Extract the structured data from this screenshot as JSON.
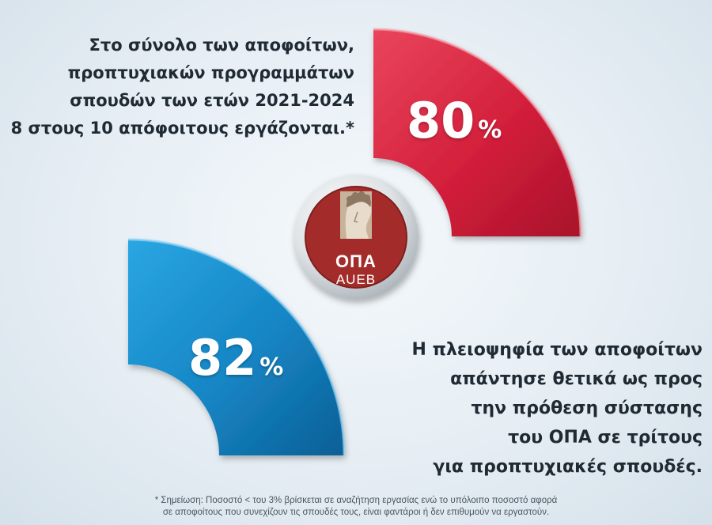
{
  "red_block": {
    "lines": [
      "Στο σύνολο των αποφοίτων,",
      "προπτυχιακών προγραμμάτων",
      "σπουδών των ετών 2021-2024",
      "8 στους 10 απόφοιτους εργάζονται.*"
    ],
    "value": "80",
    "unit": "%",
    "color": "#d7233f"
  },
  "blue_block": {
    "lines": [
      "Η πλειοψηφία των αποφοίτων",
      "απάντησε θετικά ως προς",
      "την πρόθεση σύστασης",
      "του ΟΠΑ σε τρίτους",
      "για προπτυχιακές σπουδές."
    ],
    "value": "82",
    "unit": "%",
    "color": "#1d8fcc"
  },
  "logo": {
    "name_gr": "ΟΠΑ",
    "name_en": "AUEB",
    "icon": "hermes-head-icon",
    "color": "#a32c2a"
  },
  "footnote": [
    "* Σημείωση: Ποσοστό < του 3%  βρίσκεται σε αναζήτηση εργασίας ενώ το υπόλοιπο ποσοστό αφορά",
    "σε αποφοίτους που συνεχίζουν τις σπουδές τους, είναι φαντάροι ή δεν επιθυμούν να εργαστούν."
  ]
}
